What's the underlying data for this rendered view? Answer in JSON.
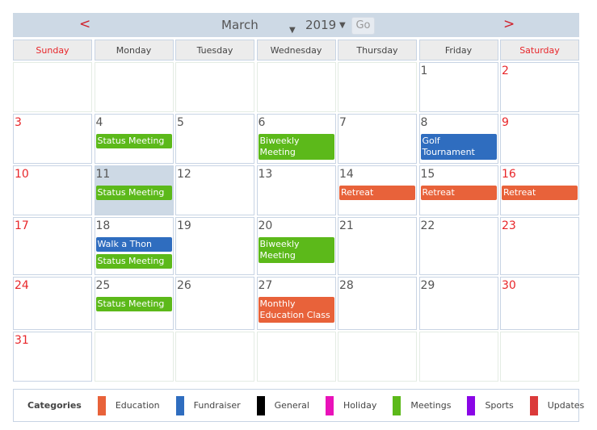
{
  "header": {
    "prev": "<",
    "next": ">",
    "month": "March",
    "year": "2019",
    "go": "Go",
    "dropdown_arrow": "▼"
  },
  "days": [
    {
      "label": "Sunday",
      "weekend": true
    },
    {
      "label": "Monday"
    },
    {
      "label": "Tuesday"
    },
    {
      "label": "Wednesday"
    },
    {
      "label": "Thursday"
    },
    {
      "label": "Friday"
    },
    {
      "label": "Saturday",
      "weekend": true
    }
  ],
  "today": 11,
  "row_heights": [
    62,
    62,
    62,
    72,
    66,
    62
  ],
  "weeks": [
    [
      null,
      null,
      null,
      null,
      null,
      {
        "day": "1"
      },
      {
        "day": "2"
      }
    ],
    [
      {
        "day": "3"
      },
      {
        "day": "4",
        "events": [
          {
            "title": "Status Meeting",
            "category": "Meetings"
          }
        ]
      },
      {
        "day": "5"
      },
      {
        "day": "6",
        "events": [
          {
            "title": "Biweekly Meeting",
            "category": "Meetings"
          }
        ]
      },
      {
        "day": "7"
      },
      {
        "day": "8",
        "events": [
          {
            "title": "Golf Tournament",
            "category": "Fundraiser"
          }
        ]
      },
      {
        "day": "9"
      }
    ],
    [
      {
        "day": "10"
      },
      {
        "day": "11",
        "events": [
          {
            "title": "Status Meeting",
            "category": "Meetings"
          }
        ]
      },
      {
        "day": "12"
      },
      {
        "day": "13"
      },
      {
        "day": "14",
        "events": [
          {
            "title": "Retreat",
            "category": "Education"
          }
        ]
      },
      {
        "day": "15",
        "events": [
          {
            "title": "Retreat",
            "category": "Education"
          }
        ]
      },
      {
        "day": "16",
        "events": [
          {
            "title": "Retreat",
            "category": "Education"
          }
        ]
      }
    ],
    [
      {
        "day": "17"
      },
      {
        "day": "18",
        "events": [
          {
            "title": "Walk a Thon",
            "category": "Fundraiser"
          },
          {
            "title": "Status Meeting",
            "category": "Meetings"
          }
        ]
      },
      {
        "day": "19"
      },
      {
        "day": "20",
        "events": [
          {
            "title": "Biweekly Meeting",
            "category": "Meetings"
          }
        ]
      },
      {
        "day": "21"
      },
      {
        "day": "22"
      },
      {
        "day": "23"
      }
    ],
    [
      {
        "day": "24"
      },
      {
        "day": "25",
        "events": [
          {
            "title": "Status Meeting",
            "category": "Meetings"
          }
        ]
      },
      {
        "day": "26"
      },
      {
        "day": "27",
        "events": [
          {
            "title": "Monthly Education Class",
            "category": "Education"
          }
        ]
      },
      {
        "day": "28"
      },
      {
        "day": "29"
      },
      {
        "day": "30"
      }
    ],
    [
      {
        "day": "31"
      },
      null,
      null,
      null,
      null,
      null,
      null
    ]
  ],
  "legend": {
    "title": "Categories",
    "items": [
      {
        "label": "Education",
        "color": "#e8623a"
      },
      {
        "label": "Fundraiser",
        "color": "#2f6dbf"
      },
      {
        "label": "General",
        "color": "#000000"
      },
      {
        "label": "Holiday",
        "color": "#e912b9"
      },
      {
        "label": "Meetings",
        "color": "#5cb91a"
      },
      {
        "label": "Sports",
        "color": "#8a06e6"
      },
      {
        "label": "Updates",
        "color": "#db3a3a"
      }
    ]
  }
}
